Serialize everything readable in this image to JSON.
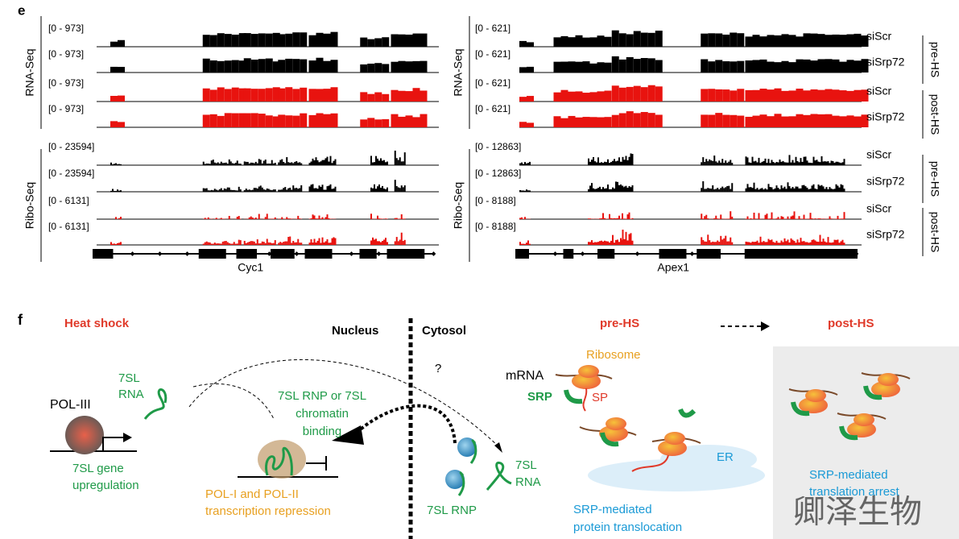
{
  "panel_e": {
    "label": "e",
    "assays": [
      "RNA-Seq",
      "Ribo-Seq",
      "RNA-Seq",
      "Ribo-Seq"
    ],
    "left": {
      "gene": "Cyc1",
      "ranges": [
        "[0 - 973]",
        "[0 - 973]",
        "[0 - 973]",
        "[0 - 973]",
        "[0 - 23594]",
        "[0 - 23594]",
        "[0 - 6131]",
        "[0 - 6131]"
      ]
    },
    "right": {
      "gene": "Apex1",
      "ranges": [
        "[0 - 621]",
        "[0 - 621]",
        "[0 - 621]",
        "[0 - 621]",
        "[0 - 12863]",
        "[0 - 12863]",
        "[0 - 8188]",
        "[0 - 8188]"
      ]
    },
    "samples": [
      "siScr",
      "siSrp72",
      "siScr",
      "siSrp72",
      "siScr",
      "siSrp72",
      "siScr",
      "siSrp72"
    ],
    "conditions": [
      "pre-HS",
      "post-HS",
      "pre-HS",
      "post-HS"
    ]
  },
  "panel_f": {
    "label": "f",
    "heat_shock": "Heat shock",
    "nucleus": "Nucleus",
    "cytosol": "Cytosol",
    "pre_hs": "pre-HS",
    "post_hs": "post-HS",
    "question": "?",
    "rna_7sl_a": [
      "7SL",
      "RNA"
    ],
    "pol3": "POL-III",
    "gene_up": [
      "7SL gene",
      "upregulation"
    ],
    "binding": [
      "7SL RNP or 7SL",
      "chromatin",
      "binding"
    ],
    "repression": [
      "POL-I and POL-II",
      "transcription repression"
    ],
    "rnp": "7SL RNP",
    "rna_7sl_b": [
      "7SL",
      "RNA"
    ],
    "mrna": "mRNA",
    "ribosome": "Ribosome",
    "srp": "SRP",
    "sp": "SP",
    "er": "ER",
    "translocation": [
      "SRP-mediated",
      "protein translocation"
    ],
    "arrest": [
      "SRP-mediated",
      "translation arrest"
    ],
    "watermark": "卿泽生物"
  }
}
